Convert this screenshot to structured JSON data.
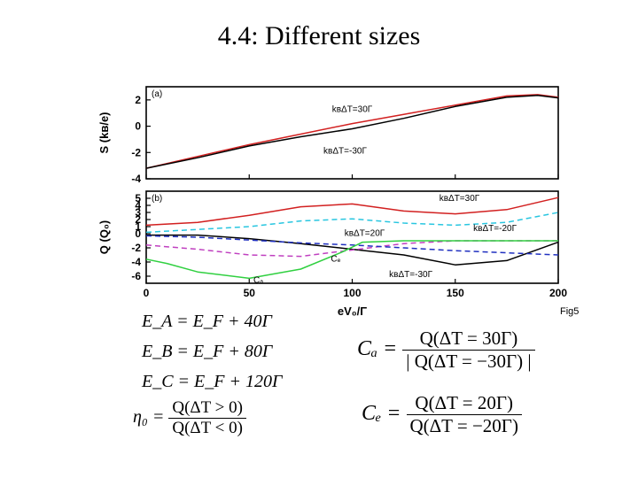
{
  "slide": {
    "title": "4.4: Different sizes"
  },
  "figure": {
    "label": "Fig5",
    "panel_a_tag": "(a)",
    "panel_b_tag": "(b)",
    "x_label": "eV₀/Γ",
    "y_label_a": "S (kʙ/e)",
    "y_label_b": "Q (Q₀)"
  },
  "chart_data": [
    {
      "type": "line",
      "panel": "(a)",
      "xlim": [
        0,
        200
      ],
      "ylim": [
        -4,
        3
      ],
      "x_ticks": [
        0,
        50,
        100,
        150,
        200
      ],
      "y_ticks": [
        2,
        0,
        -2,
        -4
      ],
      "grid": false,
      "annotations": [
        {
          "text": "kʙΔT=30Γ",
          "x": 100,
          "y": 0.0
        },
        {
          "text": "kʙΔT=-30Γ",
          "x": 100,
          "y": -0.6
        }
      ],
      "series": [
        {
          "color": "#d22020",
          "dash": "solid",
          "x": [
            0,
            25,
            50,
            75,
            100,
            125,
            150,
            175,
            190,
            200
          ],
          "y": [
            -3.2,
            -2.3,
            -1.4,
            -0.6,
            0.2,
            0.9,
            1.6,
            2.3,
            2.4,
            2.2
          ]
        },
        {
          "color": "#000000",
          "dash": "solid",
          "x": [
            0,
            25,
            50,
            75,
            100,
            125,
            150,
            175,
            190,
            200
          ],
          "y": [
            -3.2,
            -2.4,
            -1.5,
            -0.8,
            -0.2,
            0.6,
            1.5,
            2.2,
            2.35,
            2.15
          ]
        }
      ]
    },
    {
      "type": "line",
      "panel": "(b)",
      "xlim": [
        0,
        200
      ],
      "ylim": [
        -7,
        6
      ],
      "x_ticks": [
        0,
        50,
        100,
        150,
        200
      ],
      "y_ticks": [
        5,
        4,
        3,
        2,
        1,
        0,
        -2,
        -4,
        -6
      ],
      "grid": false,
      "annotations": [
        {
          "text": "kʙΔT=30Γ",
          "x": 140,
          "y": 3.6
        },
        {
          "text": "kʙΔT=20Γ",
          "x": 100,
          "y": 0.2
        },
        {
          "text": "kʙΔT=-20Γ",
          "x": 165,
          "y": -0.4
        },
        {
          "text": "Cₐ",
          "x": 57,
          "y": -5.7
        },
        {
          "text": "Cₑ",
          "x": 92,
          "y": -2.2
        },
        {
          "text": "kʙΔT=-30Γ",
          "x": 125,
          "y": -4.9
        }
      ],
      "series": [
        {
          "color": "#d22020",
          "dash": "solid",
          "x": [
            0,
            25,
            50,
            75,
            100,
            125,
            150,
            175,
            200
          ],
          "y": [
            1.2,
            1.6,
            2.6,
            3.8,
            4.2,
            3.2,
            2.8,
            3.4,
            5.1
          ]
        },
        {
          "color": "#29c6e0",
          "dash": "dashed",
          "x": [
            0,
            25,
            50,
            75,
            100,
            125,
            150,
            175,
            200
          ],
          "y": [
            0.2,
            0.6,
            1.0,
            1.8,
            2.1,
            1.5,
            1.2,
            1.6,
            3.0
          ]
        },
        {
          "color": "#000000",
          "dash": "solid",
          "x": [
            0,
            25,
            50,
            75,
            100,
            125,
            150,
            175,
            200
          ],
          "y": [
            -0.2,
            -0.2,
            -0.7,
            -1.4,
            -2.2,
            -3.0,
            -4.4,
            -3.8,
            -1.2
          ]
        },
        {
          "color": "#c040c0",
          "dash": "dashed",
          "x": [
            0,
            25,
            50,
            75,
            100,
            125,
            150,
            175,
            200
          ],
          "y": [
            -1.6,
            -2.2,
            -3.0,
            -3.2,
            -2.3,
            -1.4,
            -1.0,
            -1.0,
            -1.0
          ]
        },
        {
          "color": "#2030c0",
          "dash": "dashed",
          "x": [
            0,
            25,
            50,
            75,
            100,
            125,
            150,
            175,
            200
          ],
          "y": [
            -0.3,
            -0.5,
            -0.9,
            -1.3,
            -1.6,
            -2.0,
            -2.4,
            -2.7,
            -3.0
          ]
        },
        {
          "color": "#30d040",
          "dash": "solid",
          "x": [
            0,
            10,
            25,
            50,
            75,
            95,
            105,
            125,
            150,
            200
          ],
          "y": [
            -3.6,
            -4.2,
            -5.4,
            -6.3,
            -5.0,
            -2.6,
            -1.2,
            -1.0,
            -1.0,
            -1.0
          ]
        }
      ]
    }
  ],
  "equations": {
    "ea": "E_A = E_F + 40Γ",
    "eb": "E_B = E_F + 80Γ",
    "ec": "E_C = E_F + 120Γ",
    "eta_lhs": "η₀ =",
    "eta_num": "Q(ΔT > 0)",
    "eta_den": "Q(ΔT < 0)",
    "ca_lhs": "Cₐ =",
    "ca_num": "Q(ΔT = 30Γ)",
    "ca_den": "| Q(ΔT = −30Γ) |",
    "cb_lhs": "Cₑ =",
    "cb_num": "Q(ΔT = 20Γ)",
    "cb_den": "Q(ΔT = −20Γ)"
  }
}
